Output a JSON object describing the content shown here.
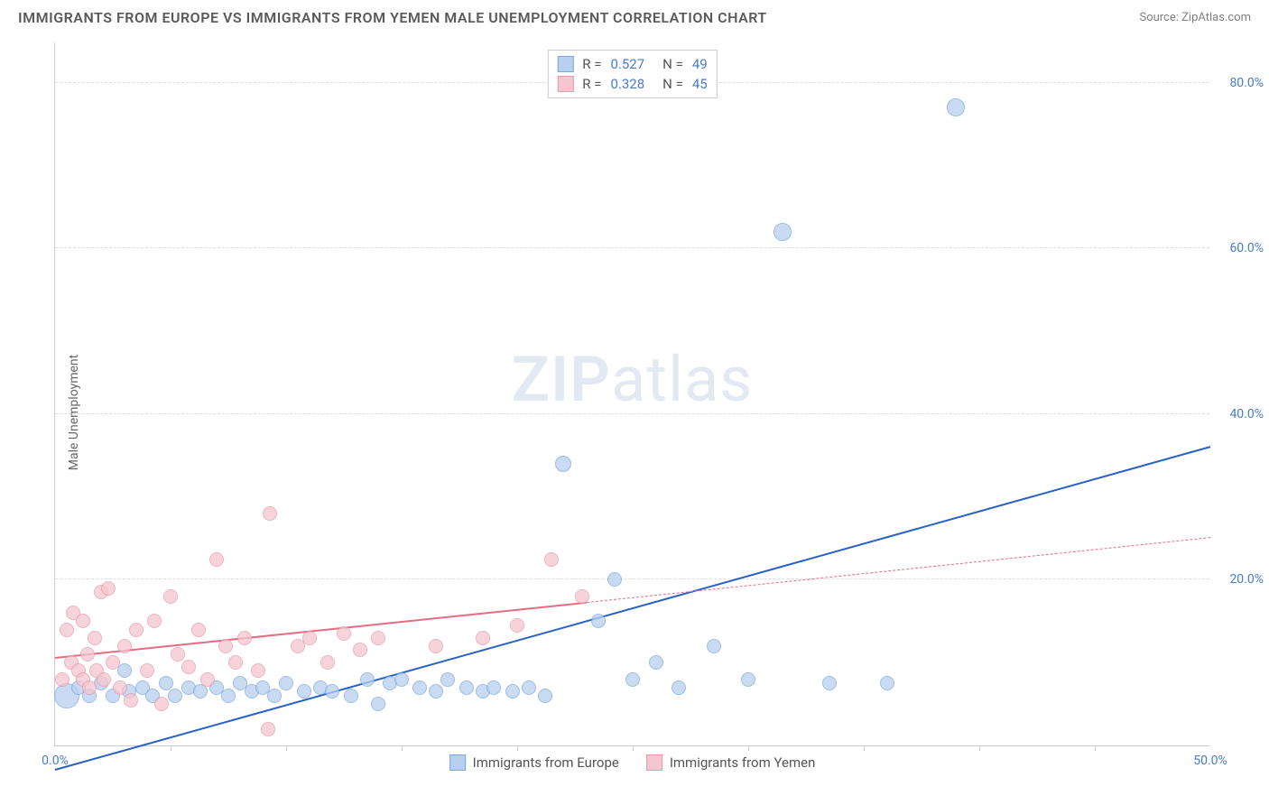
{
  "header": {
    "title": "IMMIGRANTS FROM EUROPE VS IMMIGRANTS FROM YEMEN MALE UNEMPLOYMENT CORRELATION CHART",
    "source": "Source: ZipAtlas.com"
  },
  "chart": {
    "type": "scatter",
    "y_label": "Male Unemployment",
    "watermark": "ZIPatlas",
    "background_color": "#ffffff",
    "grid_color": "#dddddd",
    "axis_color": "#cccccc",
    "tick_label_color": "#4a7bc8",
    "xlim": [
      0,
      50
    ],
    "ylim": [
      0,
      85
    ],
    "y_ticks": [
      20,
      40,
      60,
      80
    ],
    "y_tick_labels": [
      "20.0%",
      "40.0%",
      "60.0%",
      "80.0%"
    ],
    "x_ticks": [
      0,
      50
    ],
    "x_tick_labels": [
      "0.0%",
      "50.0%"
    ],
    "x_minor_ticks": [
      5,
      10,
      15,
      20,
      25,
      30,
      35,
      40,
      45
    ],
    "legend_top": {
      "rows": [
        {
          "swatch_fill": "#b8d0ee",
          "swatch_stroke": "#7aa8dc",
          "r_label": "R =",
          "r_value": "0.527",
          "n_label": "N =",
          "n_value": "49"
        },
        {
          "swatch_fill": "#f5c6cf",
          "swatch_stroke": "#e89aa8",
          "r_label": "R =",
          "r_value": "0.328",
          "n_label": "N =",
          "n_value": "45"
        }
      ]
    },
    "legend_bottom": {
      "items": [
        {
          "swatch_fill": "#b8d0ee",
          "swatch_stroke": "#7aa8dc",
          "label": "Immigrants from Europe"
        },
        {
          "swatch_fill": "#f5c6cf",
          "swatch_stroke": "#e89aa8",
          "label": "Immigrants from Yemen"
        }
      ]
    },
    "series": [
      {
        "name": "Immigrants from Europe",
        "fill": "#b8d0ee",
        "stroke": "#7aa8dc",
        "marker_radius": 8,
        "trend": {
          "color": "#2860c4",
          "width": 2,
          "dash": "none",
          "dash_after_x": null,
          "x1": 0,
          "y1": -3,
          "x2": 50,
          "y2": 36
        },
        "points": [
          {
            "x": 0.5,
            "y": 6,
            "r": 14
          },
          {
            "x": 1,
            "y": 7
          },
          {
            "x": 1.5,
            "y": 6
          },
          {
            "x": 2,
            "y": 7.5
          },
          {
            "x": 2.5,
            "y": 6
          },
          {
            "x": 3,
            "y": 9
          },
          {
            "x": 3.2,
            "y": 6.5
          },
          {
            "x": 3.8,
            "y": 7
          },
          {
            "x": 4.2,
            "y": 6
          },
          {
            "x": 4.8,
            "y": 7.5
          },
          {
            "x": 5.2,
            "y": 6
          },
          {
            "x": 5.8,
            "y": 7
          },
          {
            "x": 6.3,
            "y": 6.5
          },
          {
            "x": 7,
            "y": 7
          },
          {
            "x": 7.5,
            "y": 6
          },
          {
            "x": 8,
            "y": 7.5
          },
          {
            "x": 8.5,
            "y": 6.5
          },
          {
            "x": 9,
            "y": 7
          },
          {
            "x": 9.5,
            "y": 6
          },
          {
            "x": 10,
            "y": 7.5
          },
          {
            "x": 10.8,
            "y": 6.5
          },
          {
            "x": 11.5,
            "y": 7
          },
          {
            "x": 12,
            "y": 6.5
          },
          {
            "x": 12.8,
            "y": 6
          },
          {
            "x": 13.5,
            "y": 8
          },
          {
            "x": 14,
            "y": 5
          },
          {
            "x": 14.5,
            "y": 7.5
          },
          {
            "x": 15,
            "y": 8
          },
          {
            "x": 15.8,
            "y": 7
          },
          {
            "x": 16.5,
            "y": 6.5
          },
          {
            "x": 17,
            "y": 8
          },
          {
            "x": 17.8,
            "y": 7
          },
          {
            "x": 18.5,
            "y": 6.5
          },
          {
            "x": 19,
            "y": 7
          },
          {
            "x": 19.8,
            "y": 6.5
          },
          {
            "x": 20.5,
            "y": 7
          },
          {
            "x": 21.2,
            "y": 6
          },
          {
            "x": 22,
            "y": 34,
            "r": 9
          },
          {
            "x": 23.5,
            "y": 15
          },
          {
            "x": 24.2,
            "y": 20
          },
          {
            "x": 25,
            "y": 8
          },
          {
            "x": 26,
            "y": 10
          },
          {
            "x": 27,
            "y": 7
          },
          {
            "x": 28.5,
            "y": 12
          },
          {
            "x": 30,
            "y": 8
          },
          {
            "x": 31.5,
            "y": 62,
            "r": 10
          },
          {
            "x": 33.5,
            "y": 7.5
          },
          {
            "x": 36,
            "y": 7.5
          },
          {
            "x": 39,
            "y": 77,
            "r": 10
          }
        ]
      },
      {
        "name": "Immigrants from Yemen",
        "fill": "#f5c6cf",
        "stroke": "#e89aa8",
        "marker_radius": 8,
        "trend": {
          "color": "#e66c82",
          "width": 2,
          "dash": "none",
          "dash_after_x": 23,
          "x1": 0,
          "y1": 10.5,
          "x2": 50,
          "y2": 25
        },
        "points": [
          {
            "x": 0.3,
            "y": 8
          },
          {
            "x": 0.5,
            "y": 14
          },
          {
            "x": 0.7,
            "y": 10
          },
          {
            "x": 0.8,
            "y": 16
          },
          {
            "x": 1,
            "y": 9
          },
          {
            "x": 1.2,
            "y": 8
          },
          {
            "x": 1.2,
            "y": 15
          },
          {
            "x": 1.4,
            "y": 11
          },
          {
            "x": 1.5,
            "y": 7
          },
          {
            "x": 1.7,
            "y": 13
          },
          {
            "x": 1.8,
            "y": 9
          },
          {
            "x": 2,
            "y": 18.5
          },
          {
            "x": 2.1,
            "y": 8
          },
          {
            "x": 2.3,
            "y": 19
          },
          {
            "x": 2.5,
            "y": 10
          },
          {
            "x": 2.8,
            "y": 7
          },
          {
            "x": 3,
            "y": 12
          },
          {
            "x": 3.3,
            "y": 5.5
          },
          {
            "x": 3.5,
            "y": 14
          },
          {
            "x": 4,
            "y": 9
          },
          {
            "x": 4.3,
            "y": 15
          },
          {
            "x": 4.6,
            "y": 5
          },
          {
            "x": 5,
            "y": 18
          },
          {
            "x": 5.3,
            "y": 11
          },
          {
            "x": 5.8,
            "y": 9.5
          },
          {
            "x": 6.2,
            "y": 14
          },
          {
            "x": 6.6,
            "y": 8
          },
          {
            "x": 7,
            "y": 22.5
          },
          {
            "x": 7.4,
            "y": 12
          },
          {
            "x": 7.8,
            "y": 10
          },
          {
            "x": 8.2,
            "y": 13
          },
          {
            "x": 8.8,
            "y": 9
          },
          {
            "x": 9.3,
            "y": 28
          },
          {
            "x": 9.2,
            "y": 2
          },
          {
            "x": 10.5,
            "y": 12
          },
          {
            "x": 11,
            "y": 13
          },
          {
            "x": 11.8,
            "y": 10
          },
          {
            "x": 12.5,
            "y": 13.5
          },
          {
            "x": 13.2,
            "y": 11.5
          },
          {
            "x": 14,
            "y": 13
          },
          {
            "x": 16.5,
            "y": 12
          },
          {
            "x": 18.5,
            "y": 13
          },
          {
            "x": 20,
            "y": 14.5
          },
          {
            "x": 21.5,
            "y": 22.5
          },
          {
            "x": 22.8,
            "y": 18
          }
        ]
      }
    ]
  }
}
